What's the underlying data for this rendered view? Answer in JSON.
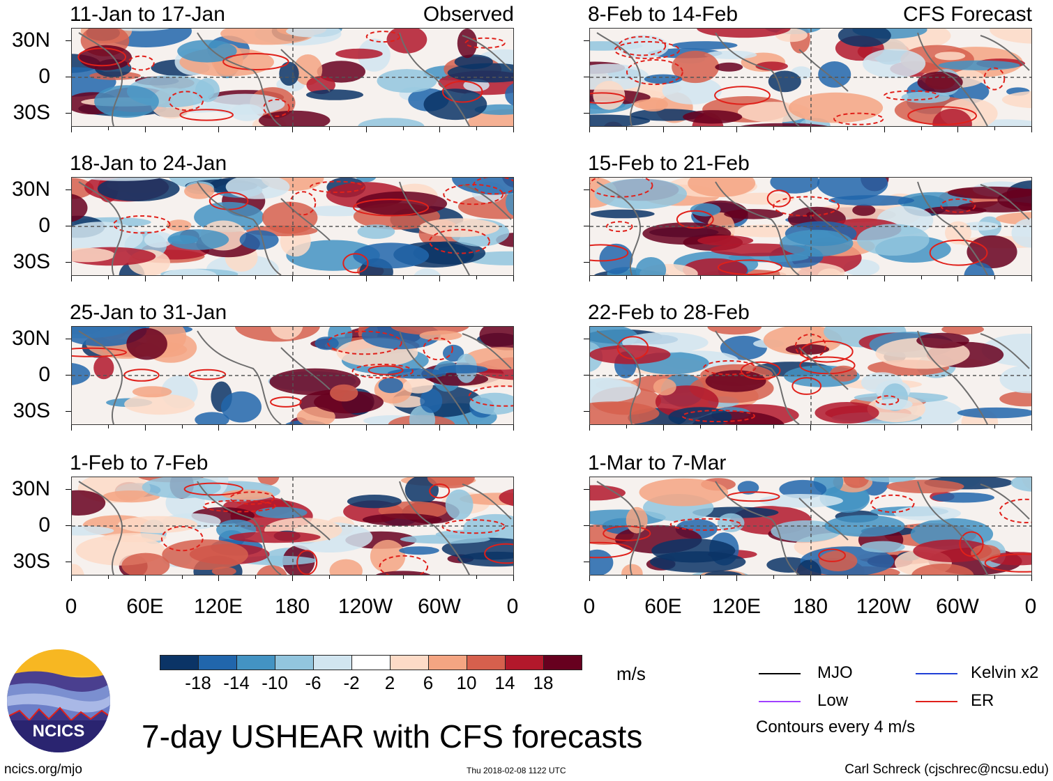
{
  "panels_left": [
    {
      "title": "11-Jan to 17-Jan",
      "tag": "Observed"
    },
    {
      "title": "18-Jan to 24-Jan",
      "tag": ""
    },
    {
      "title": "25-Jan to 31-Jan",
      "tag": ""
    },
    {
      "title": "1-Feb to 7-Feb",
      "tag": ""
    }
  ],
  "panels_right": [
    {
      "title": "8-Feb to 14-Feb",
      "tag": "CFS Forecast"
    },
    {
      "title": "15-Feb to 21-Feb",
      "tag": ""
    },
    {
      "title": "22-Feb to 28-Feb",
      "tag": ""
    },
    {
      "title": "1-Mar to 7-Mar",
      "tag": ""
    }
  ],
  "lat_labels": [
    "30N",
    "0",
    "30S"
  ],
  "lon_labels": [
    "0",
    "60E",
    "120E",
    "180",
    "120W",
    "60W",
    "0"
  ],
  "colorbar": {
    "ticks": [
      "-18",
      "-14",
      "-10",
      "-6",
      "-2",
      "2",
      "6",
      "10",
      "14",
      "18"
    ],
    "colors": [
      "#0b3466",
      "#2166ac",
      "#4393c3",
      "#92c5de",
      "#d1e5f0",
      "#ffffff",
      "#fddbc7",
      "#f4a582",
      "#d6604d",
      "#b2182b",
      "#67001f"
    ],
    "unit": "m/s"
  },
  "legend": {
    "items": [
      {
        "label": "MJO",
        "color": "#000000"
      },
      {
        "label": "Kelvin x2",
        "color": "#1f3fd6"
      },
      {
        "label": "Low",
        "color": "#a040ff"
      },
      {
        "label": "ER",
        "color": "#e0201a"
      }
    ],
    "note": "Contours every 4 m/s"
  },
  "logo_text": "NCICS",
  "main_title": "7-day USHEAR with CFS forecasts",
  "footer": {
    "left": "ncics.org/mjo",
    "center": "Thu 2018-02-08 1122 UTC",
    "right": "Carl Schreck (cjschrec@ncsu.edu)"
  }
}
